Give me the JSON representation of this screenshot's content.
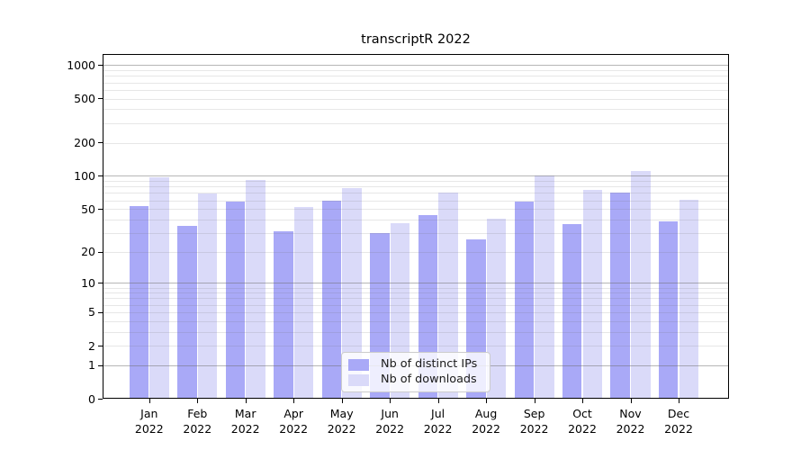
{
  "title": "transcriptR 2022",
  "chart_data": {
    "type": "bar",
    "title": "transcriptR 2022",
    "categories": [
      "Jan",
      "Feb",
      "Mar",
      "Apr",
      "May",
      "Jun",
      "Jul",
      "Aug",
      "Sep",
      "Oct",
      "Nov",
      "Dec"
    ],
    "year_label": "2022",
    "series": [
      {
        "name": "Nb of distinct IPs",
        "color": "#a9a9f7",
        "values": [
          53,
          35,
          58,
          31,
          60,
          30,
          44,
          26,
          58,
          36,
          70,
          38
        ]
      },
      {
        "name": "Nb of downloads",
        "color": "#dadaf9",
        "values": [
          97,
          69,
          91,
          52,
          78,
          37,
          70,
          41,
          100,
          74,
          110,
          61
        ]
      }
    ],
    "yscale": "log1p",
    "yticks": [
      0,
      1,
      2,
      5,
      10,
      20,
      50,
      100,
      200,
      500,
      1000
    ],
    "ylim": [
      0,
      1250
    ],
    "grid": {
      "major_ticks": [
        1,
        10,
        100,
        1000
      ],
      "major_color": "#b4b4b4",
      "minor_color": "#e6e6e6"
    },
    "legend": {
      "position": "lower center"
    }
  }
}
